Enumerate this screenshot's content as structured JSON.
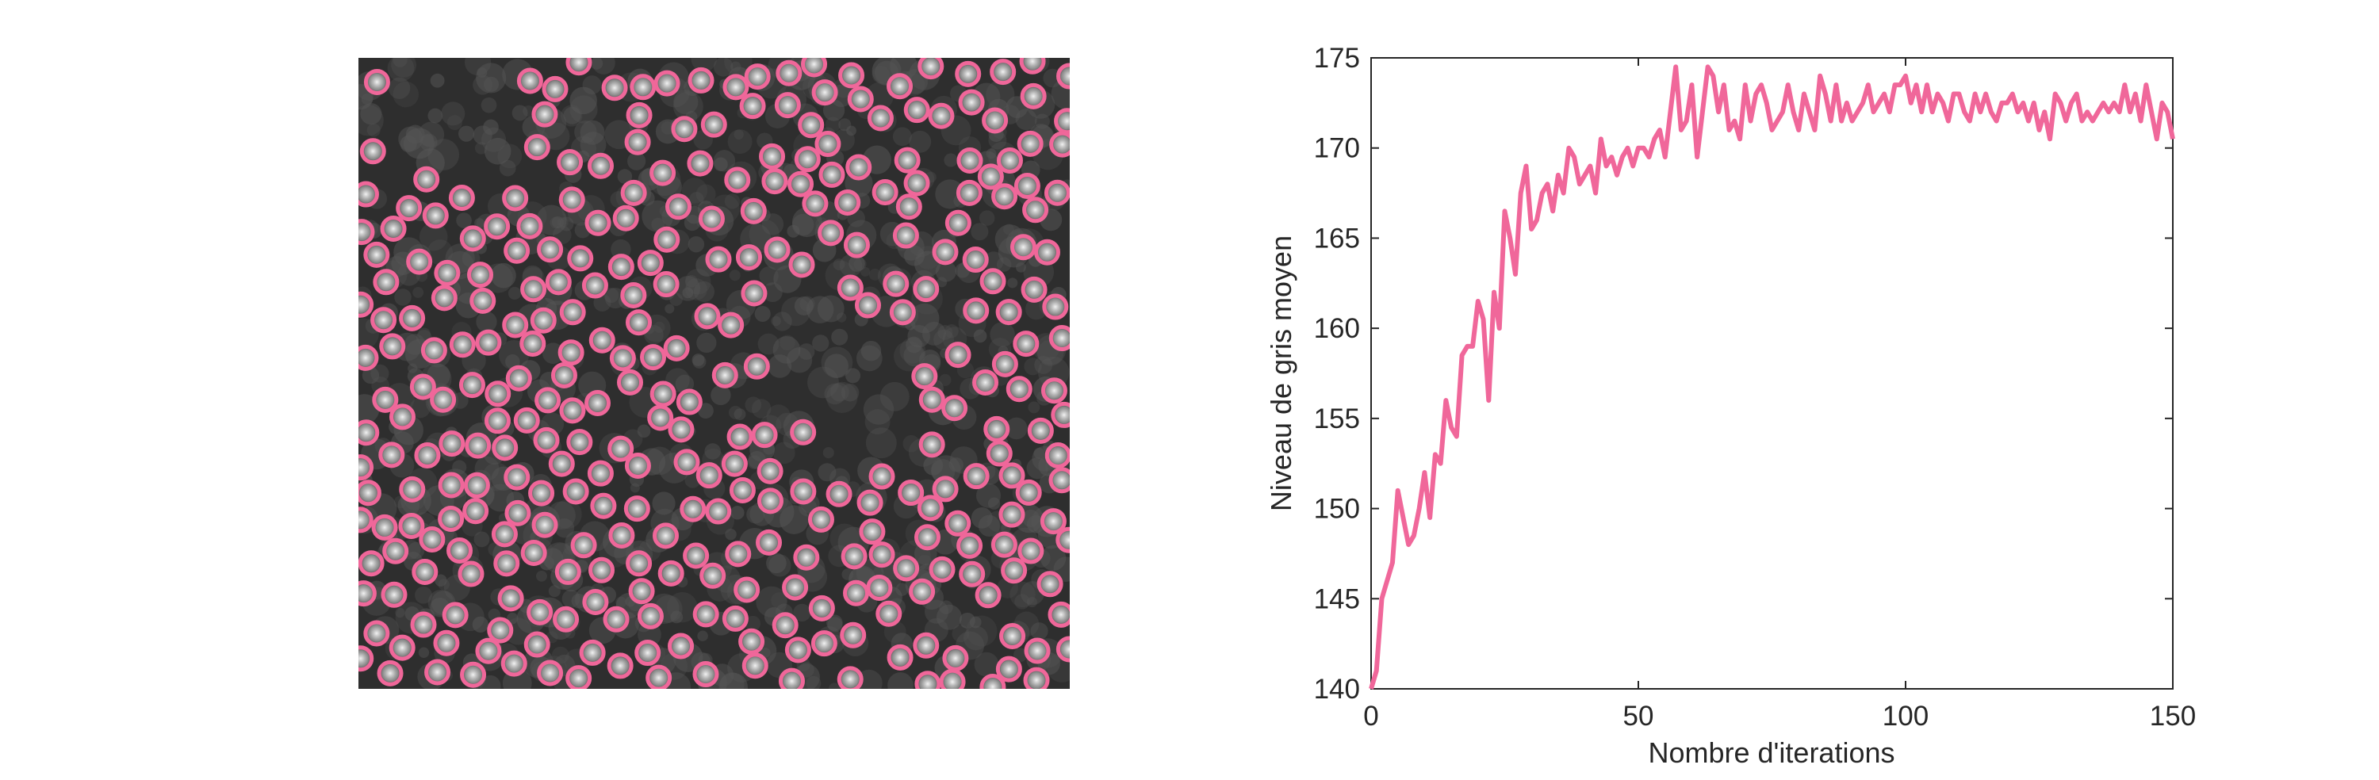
{
  "chart_data": {
    "type": "line",
    "x_label": "Nombre d'iterations",
    "y_label": "Niveau de gris moyen",
    "color": "#f0679a",
    "x": [
      0,
      1,
      2,
      3,
      4,
      5,
      6,
      7,
      8,
      9,
      10,
      11,
      12,
      13,
      14,
      15,
      16,
      17,
      18,
      19,
      20,
      21,
      22,
      23,
      24,
      25,
      26,
      27,
      28,
      29,
      30,
      31,
      32,
      33,
      34,
      35,
      36,
      37,
      38,
      39,
      40,
      41,
      42,
      43,
      44,
      45,
      46,
      47,
      48,
      49,
      50,
      51,
      52,
      53,
      54,
      55,
      56,
      57,
      58,
      59,
      60,
      61,
      62,
      63,
      64,
      65,
      66,
      67,
      68,
      69,
      70,
      71,
      72,
      73,
      74,
      75,
      76,
      77,
      78,
      79,
      80,
      81,
      82,
      83,
      84,
      85,
      86,
      87,
      88,
      89,
      90,
      91,
      92,
      93,
      94,
      95,
      96,
      97,
      98,
      99,
      100,
      101,
      102,
      103,
      104,
      105,
      106,
      107,
      108,
      109,
      110,
      111,
      112,
      113,
      114,
      115,
      116,
      117,
      118,
      119,
      120,
      121,
      122,
      123,
      124,
      125,
      126,
      127,
      128,
      129,
      130,
      131,
      132,
      133,
      134,
      135,
      136,
      137,
      138,
      139,
      140,
      141,
      142,
      143,
      144,
      145,
      146,
      147,
      148,
      149,
      150
    ],
    "values": [
      140,
      141,
      145,
      146,
      147,
      151,
      149.5,
      148,
      148.5,
      150,
      152,
      149.5,
      153,
      152.5,
      156,
      154.5,
      154,
      158.5,
      159,
      159,
      161.5,
      160.5,
      156,
      162,
      160,
      166.5,
      165,
      163,
      167.5,
      169,
      165.5,
      166,
      167.5,
      168,
      166.5,
      168.5,
      167.5,
      170,
      169.5,
      168,
      168.5,
      169,
      167.5,
      170.5,
      169,
      169.5,
      168.5,
      169.5,
      170,
      169,
      170,
      170,
      169.5,
      170.5,
      171,
      169.5,
      172,
      174.5,
      171,
      171.5,
      173.5,
      169.5,
      172,
      174.5,
      174,
      172,
      173.5,
      171,
      171.5,
      170.5,
      173.5,
      171.5,
      173,
      173.5,
      172.5,
      171,
      171.5,
      172,
      173.5,
      172,
      171,
      173,
      172,
      171,
      174,
      173,
      171.5,
      173.5,
      171.5,
      172.5,
      171.5,
      172,
      172.5,
      173.5,
      172,
      172.5,
      173,
      172,
      173.5,
      173.5,
      174,
      172.5,
      173.5,
      172,
      173.5,
      172,
      173,
      172.5,
      171.5,
      173,
      173,
      172,
      171.5,
      173,
      172,
      173,
      172,
      171.5,
      172.5,
      172.5,
      173,
      172,
      172.5,
      171.5,
      172.5,
      171,
      172,
      170.5,
      173,
      172.5,
      171.5,
      172.5,
      173,
      171.5,
      172,
      171.5,
      172,
      172.5,
      172,
      172.5,
      172,
      173.5,
      172,
      173,
      171.5,
      173.5,
      172,
      170.5,
      172.5,
      172,
      170.5
    ],
    "xlim": [
      0,
      150
    ],
    "xticks": [
      0,
      50,
      100,
      150
    ],
    "ylim": [
      140,
      175
    ],
    "yticks": [
      140,
      145,
      150,
      155,
      160,
      165,
      170,
      175
    ]
  }
}
